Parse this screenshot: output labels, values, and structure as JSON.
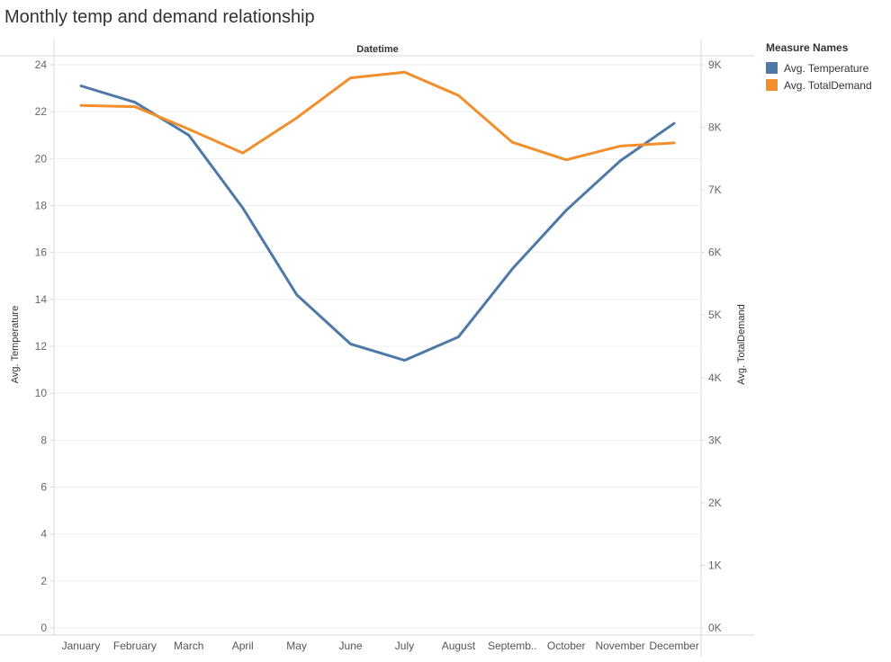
{
  "title": "Monthly temp and demand relationship",
  "chart_data": {
    "type": "line",
    "title": "Monthly temp and demand relationship",
    "column_header": "Datetime",
    "categories": [
      "January",
      "February",
      "March",
      "April",
      "May",
      "June",
      "July",
      "August",
      "Septemb..",
      "October",
      "November",
      "December"
    ],
    "y_left": {
      "label": "Avg. Temperature",
      "min": 0,
      "max": 24,
      "ticks": [
        0,
        2,
        4,
        6,
        8,
        10,
        12,
        14,
        16,
        18,
        20,
        22,
        24
      ]
    },
    "y_right": {
      "label": "Avg. TotalDemand",
      "min": 0,
      "max": 9000,
      "ticks": [
        0,
        1000,
        2000,
        3000,
        4000,
        5000,
        6000,
        7000,
        8000,
        9000
      ],
      "tick_labels": [
        "0K",
        "1K",
        "2K",
        "3K",
        "4K",
        "5K",
        "6K",
        "7K",
        "8K",
        "9K"
      ]
    },
    "series": [
      {
        "name": "Avg. Temperature",
        "axis": "left",
        "color": "#4e79a7",
        "values": [
          23.1,
          22.4,
          21.0,
          17.9,
          14.2,
          12.1,
          11.4,
          12.4,
          15.3,
          17.8,
          19.9,
          21.5
        ]
      },
      {
        "name": "Avg. TotalDemand",
        "axis": "right",
        "color": "#f28e2b",
        "values": [
          8350,
          8330,
          7970,
          7590,
          8150,
          8790,
          8880,
          8510,
          7760,
          7480,
          7700,
          7750
        ]
      }
    ],
    "grid": true,
    "legend": {
      "title": "Measure Names",
      "position": "right"
    }
  }
}
